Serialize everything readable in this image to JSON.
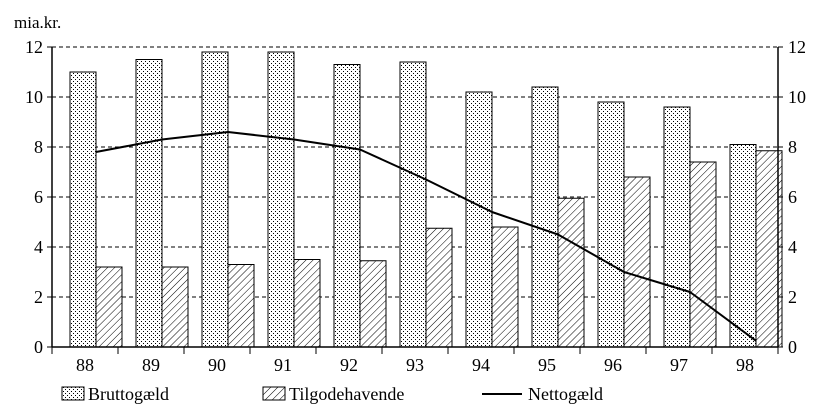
{
  "chart_data": {
    "type": "bar",
    "unit_label": "mia.kr.",
    "categories": [
      "88",
      "89",
      "90",
      "91",
      "92",
      "93",
      "94",
      "95",
      "96",
      "97",
      "98"
    ],
    "ylim": [
      0,
      12
    ],
    "yticks": [
      "0",
      "2",
      "4",
      "6",
      "8",
      "10",
      "12"
    ],
    "grid": "horizontal dashed",
    "legend_position": "bottom",
    "series": [
      {
        "name": "Bruttogæld",
        "kind": "bar",
        "pattern": "dots",
        "values": [
          11.0,
          11.5,
          11.8,
          11.8,
          11.3,
          11.4,
          10.2,
          10.4,
          9.8,
          9.6,
          8.1
        ]
      },
      {
        "name": "Tilgodehavende",
        "kind": "bar",
        "pattern": "hatch",
        "values": [
          3.2,
          3.2,
          3.3,
          3.5,
          3.45,
          4.75,
          4.8,
          5.95,
          6.8,
          7.4,
          7.85
        ]
      },
      {
        "name": "Nettogæld",
        "kind": "line",
        "values": [
          7.8,
          8.3,
          8.6,
          8.3,
          7.9,
          6.7,
          5.4,
          4.5,
          3.0,
          2.2,
          0.25
        ]
      }
    ]
  }
}
